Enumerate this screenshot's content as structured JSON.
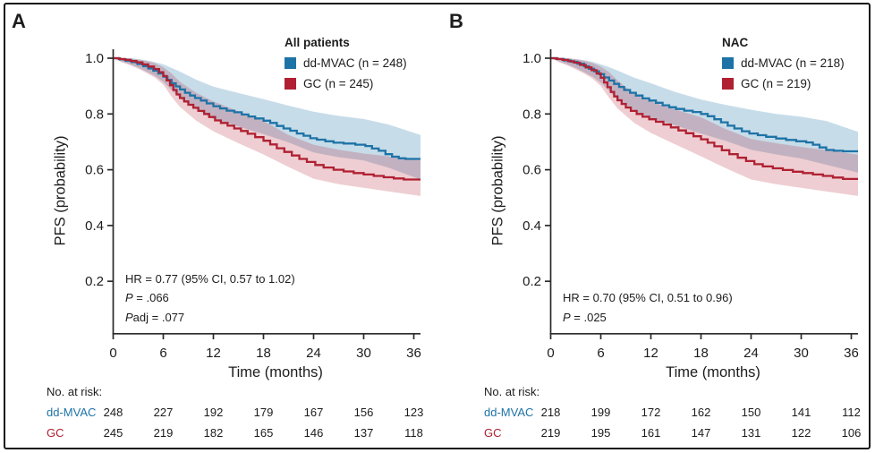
{
  "figure": {
    "risk_header": "No. at risk:",
    "axis_color": "#2a2a2a",
    "text_color": "#1c1c1c"
  },
  "chart_data": [
    {
      "type": "line",
      "subtype": "kaplan-meier",
      "panel": "A",
      "title": "All patients",
      "xlabel": "Time (months)",
      "ylabel": "PFS (probability)",
      "xlim": [
        0,
        36.8
      ],
      "ylim": [
        0,
        1.02
      ],
      "xticks": [
        0,
        6,
        12,
        18,
        24,
        30,
        36
      ],
      "ytick_values": [
        1.0,
        0.8,
        0.6,
        0.4,
        0.2
      ],
      "ytick_labels": [
        "1.0",
        "0.8",
        "0.6",
        "0.4",
        "0.2"
      ],
      "risk_header": "No. at risk:",
      "legend_position": "top-right",
      "grid": false,
      "stats": [
        [
          {
            "t": "HR = 0.77 (95% CI, 0.57 to 1.02)",
            "i": false
          }
        ],
        [
          {
            "t": "P",
            "i": true
          },
          {
            "t": " = .066",
            "i": false
          }
        ],
        [
          {
            "t": "P",
            "i": true
          },
          {
            "t": "adj = .077",
            "i": false
          }
        ]
      ],
      "band_t": [
        0,
        1,
        2,
        3,
        4,
        5,
        6,
        7,
        8,
        10,
        12,
        15,
        18,
        21,
        24,
        27,
        30,
        33,
        36.8
      ],
      "series": [
        {
          "name": "dd-MVAC",
          "n": 248,
          "label": "dd-MVAC (n = 248)",
          "color": "#1e73a6",
          "band_color": "rgba(30,115,166,0.25)",
          "at_risk": [
            248,
            227,
            192,
            179,
            167,
            156,
            123
          ],
          "steps": [
            [
              0,
              1.0
            ],
            [
              0.8,
              0.996
            ],
            [
              1.5,
              0.991
            ],
            [
              2.2,
              0.986
            ],
            [
              2.9,
              0.979
            ],
            [
              3.6,
              0.971
            ],
            [
              4.2,
              0.963
            ],
            [
              4.8,
              0.955
            ],
            [
              5.4,
              0.945
            ],
            [
              6.0,
              0.934
            ],
            [
              6.5,
              0.922
            ],
            [
              7.0,
              0.91
            ],
            [
              7.5,
              0.899
            ],
            [
              8.0,
              0.888
            ],
            [
              8.6,
              0.876
            ],
            [
              9.2,
              0.866
            ],
            [
              9.8,
              0.857
            ],
            [
              10.5,
              0.848
            ],
            [
              11.2,
              0.838
            ],
            [
              12.0,
              0.828
            ],
            [
              12.8,
              0.82
            ],
            [
              13.6,
              0.812
            ],
            [
              14.5,
              0.806
            ],
            [
              15.4,
              0.798
            ],
            [
              16.2,
              0.791
            ],
            [
              17.0,
              0.784
            ],
            [
              18.0,
              0.776
            ],
            [
              18.8,
              0.768
            ],
            [
              19.6,
              0.757
            ],
            [
              20.4,
              0.748
            ],
            [
              21.2,
              0.74
            ],
            [
              22.0,
              0.73
            ],
            [
              22.8,
              0.722
            ],
            [
              23.6,
              0.713
            ],
            [
              24.4,
              0.708
            ],
            [
              25.4,
              0.702
            ],
            [
              26.4,
              0.697
            ],
            [
              27.6,
              0.694
            ],
            [
              29.0,
              0.69
            ],
            [
              30.2,
              0.685
            ],
            [
              31.0,
              0.676
            ],
            [
              31.8,
              0.668
            ],
            [
              32.6,
              0.656
            ],
            [
              33.4,
              0.647
            ],
            [
              34.2,
              0.641
            ],
            [
              35.0,
              0.639
            ],
            [
              36.8,
              0.638
            ]
          ],
          "band_upper": [
            1.0,
            1.0,
            1.0,
            0.997,
            0.992,
            0.986,
            0.978,
            0.965,
            0.952,
            0.922,
            0.898,
            0.875,
            0.853,
            0.83,
            0.808,
            0.793,
            0.782,
            0.762,
            0.725
          ],
          "band_lower": [
            1.0,
            0.988,
            0.978,
            0.966,
            0.952,
            0.936,
            0.915,
            0.885,
            0.856,
            0.815,
            0.782,
            0.755,
            0.728,
            0.698,
            0.662,
            0.645,
            0.633,
            0.607,
            0.565
          ]
        },
        {
          "name": "GC",
          "n": 245,
          "label": "GC (n = 245)",
          "color": "#b02032",
          "band_color": "rgba(176,32,50,0.22)",
          "at_risk": [
            245,
            219,
            182,
            165,
            146,
            137,
            118
          ],
          "steps": [
            [
              0,
              1.0
            ],
            [
              0.7,
              0.997
            ],
            [
              1.4,
              0.994
            ],
            [
              2.1,
              0.99
            ],
            [
              2.8,
              0.985
            ],
            [
              3.5,
              0.978
            ],
            [
              4.2,
              0.97
            ],
            [
              4.9,
              0.961
            ],
            [
              5.5,
              0.95
            ],
            [
              6.0,
              0.936
            ],
            [
              6.4,
              0.92
            ],
            [
              6.8,
              0.903
            ],
            [
              7.2,
              0.886
            ],
            [
              7.6,
              0.87
            ],
            [
              8.0,
              0.857
            ],
            [
              8.5,
              0.845
            ],
            [
              9.0,
              0.833
            ],
            [
              9.6,
              0.822
            ],
            [
              10.2,
              0.811
            ],
            [
              10.9,
              0.8
            ],
            [
              11.5,
              0.789
            ],
            [
              12.2,
              0.777
            ],
            [
              12.9,
              0.768
            ],
            [
              13.7,
              0.758
            ],
            [
              14.5,
              0.748
            ],
            [
              15.3,
              0.739
            ],
            [
              16.1,
              0.729
            ],
            [
              17.0,
              0.717
            ],
            [
              18.0,
              0.704
            ],
            [
              18.8,
              0.691
            ],
            [
              19.6,
              0.677
            ],
            [
              20.5,
              0.664
            ],
            [
              21.4,
              0.651
            ],
            [
              22.3,
              0.639
            ],
            [
              23.2,
              0.628
            ],
            [
              24.2,
              0.617
            ],
            [
              25.2,
              0.608
            ],
            [
              26.4,
              0.6
            ],
            [
              27.6,
              0.594
            ],
            [
              28.8,
              0.588
            ],
            [
              30.0,
              0.583
            ],
            [
              31.2,
              0.578
            ],
            [
              32.4,
              0.573
            ],
            [
              33.6,
              0.569
            ],
            [
              34.8,
              0.565
            ],
            [
              36.8,
              0.562
            ]
          ],
          "band_upper": [
            1.0,
            1.0,
            1.0,
            0.995,
            0.99,
            0.982,
            0.968,
            0.945,
            0.915,
            0.875,
            0.845,
            0.81,
            0.775,
            0.725,
            0.69,
            0.672,
            0.658,
            0.648,
            0.634
          ],
          "band_lower": [
            1.0,
            0.986,
            0.975,
            0.962,
            0.947,
            0.93,
            0.905,
            0.862,
            0.825,
            0.775,
            0.738,
            0.695,
            0.655,
            0.61,
            0.568,
            0.548,
            0.535,
            0.522,
            0.506
          ]
        }
      ]
    },
    {
      "type": "line",
      "subtype": "kaplan-meier",
      "panel": "B",
      "title": "NAC",
      "xlabel": "Time (months)",
      "ylabel": "PFS (probability)",
      "xlim": [
        0,
        36.8
      ],
      "ylim": [
        0,
        1.02
      ],
      "xticks": [
        0,
        6,
        12,
        18,
        24,
        30,
        36
      ],
      "ytick_values": [
        1.0,
        0.8,
        0.6,
        0.4,
        0.2
      ],
      "ytick_labels": [
        "1.0",
        "0.8",
        "0.6",
        "0.4",
        "0.2"
      ],
      "risk_header": "No. at risk:",
      "legend_position": "top-right",
      "grid": false,
      "stats": [
        [
          {
            "t": "HR = 0.70 (95% CI, 0.51 to 0.96)",
            "i": false
          }
        ],
        [
          {
            "t": "P",
            "i": true
          },
          {
            "t": " = .025",
            "i": false
          }
        ]
      ],
      "band_t": [
        0,
        1,
        2,
        3,
        4,
        5,
        6,
        7,
        8,
        10,
        12,
        15,
        18,
        21,
        24,
        27,
        30,
        33,
        36.8
      ],
      "series": [
        {
          "name": "dd-MVAC",
          "n": 218,
          "label": "dd-MVAC (n = 218)",
          "color": "#1e73a6",
          "band_color": "rgba(30,115,166,0.25)",
          "at_risk": [
            218,
            199,
            172,
            162,
            150,
            141,
            112
          ],
          "steps": [
            [
              0,
              1.0
            ],
            [
              0.8,
              0.997
            ],
            [
              1.6,
              0.992
            ],
            [
              2.4,
              0.987
            ],
            [
              3.2,
              0.98
            ],
            [
              4.0,
              0.971
            ],
            [
              4.6,
              0.962
            ],
            [
              5.2,
              0.953
            ],
            [
              5.8,
              0.943
            ],
            [
              6.4,
              0.931
            ],
            [
              7.0,
              0.92
            ],
            [
              7.6,
              0.908
            ],
            [
              8.2,
              0.897
            ],
            [
              8.8,
              0.886
            ],
            [
              9.5,
              0.876
            ],
            [
              10.2,
              0.866
            ],
            [
              11.0,
              0.856
            ],
            [
              11.8,
              0.848
            ],
            [
              12.6,
              0.84
            ],
            [
              13.4,
              0.831
            ],
            [
              14.2,
              0.824
            ],
            [
              15.0,
              0.818
            ],
            [
              16.0,
              0.812
            ],
            [
              17.0,
              0.807
            ],
            [
              18.0,
              0.8
            ],
            [
              18.8,
              0.792
            ],
            [
              19.6,
              0.781
            ],
            [
              20.4,
              0.77
            ],
            [
              21.2,
              0.758
            ],
            [
              22.0,
              0.748
            ],
            [
              22.9,
              0.738
            ],
            [
              23.8,
              0.73
            ],
            [
              24.8,
              0.724
            ],
            [
              25.8,
              0.718
            ],
            [
              27.0,
              0.712
            ],
            [
              28.2,
              0.707
            ],
            [
              29.4,
              0.702
            ],
            [
              30.6,
              0.698
            ],
            [
              31.4,
              0.69
            ],
            [
              32.2,
              0.68
            ],
            [
              33.0,
              0.671
            ],
            [
              33.9,
              0.668
            ],
            [
              35.0,
              0.666
            ],
            [
              36.8,
              0.665
            ]
          ],
          "band_upper": [
            1.0,
            1.0,
            1.0,
            0.997,
            0.993,
            0.987,
            0.978,
            0.968,
            0.956,
            0.93,
            0.91,
            0.878,
            0.852,
            0.832,
            0.815,
            0.8,
            0.79,
            0.775,
            0.736
          ],
          "band_lower": [
            1.0,
            0.988,
            0.978,
            0.965,
            0.95,
            0.934,
            0.912,
            0.882,
            0.852,
            0.812,
            0.785,
            0.758,
            0.73,
            0.703,
            0.672,
            0.655,
            0.64,
            0.618,
            0.59
          ]
        },
        {
          "name": "GC",
          "n": 219,
          "label": "GC (n = 219)",
          "color": "#b02032",
          "band_color": "rgba(176,32,50,0.22)",
          "at_risk": [
            219,
            195,
            161,
            147,
            131,
            122,
            106
          ],
          "steps": [
            [
              0,
              1.0
            ],
            [
              0.7,
              0.997
            ],
            [
              1.4,
              0.994
            ],
            [
              2.1,
              0.989
            ],
            [
              2.8,
              0.984
            ],
            [
              3.5,
              0.976
            ],
            [
              4.2,
              0.967
            ],
            [
              4.9,
              0.957
            ],
            [
              5.5,
              0.945
            ],
            [
              6.0,
              0.93
            ],
            [
              6.4,
              0.913
            ],
            [
              6.8,
              0.896
            ],
            [
              7.2,
              0.879
            ],
            [
              7.6,
              0.863
            ],
            [
              8.0,
              0.849
            ],
            [
              8.5,
              0.836
            ],
            [
              9.0,
              0.823
            ],
            [
              9.6,
              0.811
            ],
            [
              10.3,
              0.8
            ],
            [
              11.0,
              0.79
            ],
            [
              11.8,
              0.781
            ],
            [
              12.6,
              0.772
            ],
            [
              13.5,
              0.762
            ],
            [
              14.4,
              0.752
            ],
            [
              15.3,
              0.741
            ],
            [
              16.2,
              0.731
            ],
            [
              17.1,
              0.72
            ],
            [
              18.0,
              0.709
            ],
            [
              18.8,
              0.697
            ],
            [
              19.6,
              0.684
            ],
            [
              20.5,
              0.67
            ],
            [
              21.4,
              0.656
            ],
            [
              22.4,
              0.643
            ],
            [
              23.4,
              0.631
            ],
            [
              24.4,
              0.62
            ],
            [
              25.4,
              0.612
            ],
            [
              26.6,
              0.605
            ],
            [
              27.8,
              0.599
            ],
            [
              29.0,
              0.593
            ],
            [
              30.2,
              0.588
            ],
            [
              31.4,
              0.583
            ],
            [
              32.6,
              0.578
            ],
            [
              33.8,
              0.572
            ],
            [
              35.0,
              0.567
            ],
            [
              36.8,
              0.565
            ]
          ],
          "band_upper": [
            1.0,
            1.0,
            1.0,
            0.996,
            0.991,
            0.983,
            0.97,
            0.95,
            0.92,
            0.872,
            0.845,
            0.815,
            0.788,
            0.745,
            0.71,
            0.695,
            0.682,
            0.67,
            0.654
          ],
          "band_lower": [
            1.0,
            0.986,
            0.974,
            0.96,
            0.945,
            0.927,
            0.9,
            0.858,
            0.82,
            0.768,
            0.732,
            0.69,
            0.648,
            0.605,
            0.565,
            0.548,
            0.535,
            0.522,
            0.506
          ]
        }
      ]
    }
  ]
}
